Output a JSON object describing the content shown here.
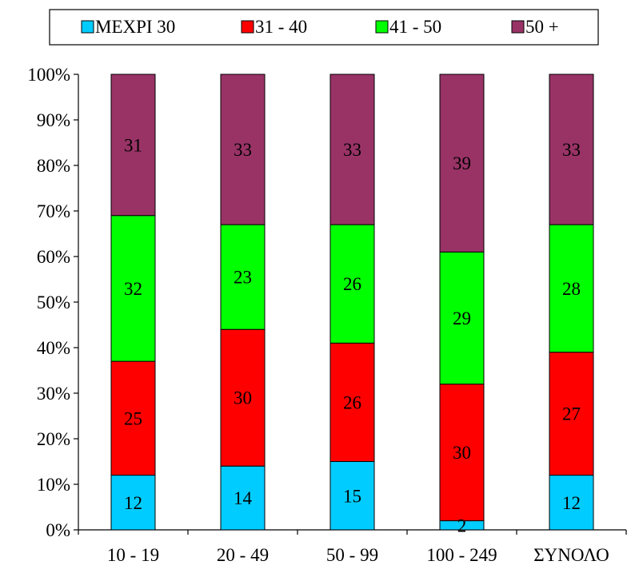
{
  "chart_data": {
    "type": "bar",
    "stacked": true,
    "percent": true,
    "categories": [
      "10 - 19",
      "20 - 49",
      "50 - 99",
      "100 - 249",
      "ΣΥΝΟΛΟ"
    ],
    "series": [
      {
        "name": "ΜΕΧΡΙ 30",
        "color": "#00CCFF",
        "values": [
          12,
          14,
          15,
          2,
          12
        ]
      },
      {
        "name": "31 - 40",
        "color": "#FF0000",
        "values": [
          25,
          30,
          26,
          30,
          27
        ]
      },
      {
        "name": "41 - 50",
        "color": "#00FF00",
        "values": [
          32,
          23,
          26,
          29,
          28
        ]
      },
      {
        "name": "50 +",
        "color": "#993366",
        "values": [
          31,
          33,
          33,
          39,
          33
        ]
      }
    ],
    "yticks": [
      "0%",
      "10%",
      "20%",
      "30%",
      "40%",
      "50%",
      "60%",
      "70%",
      "80%",
      "90%",
      "100%"
    ],
    "ylim": [
      0,
      100
    ],
    "grid": false,
    "legend_position": "top"
  }
}
